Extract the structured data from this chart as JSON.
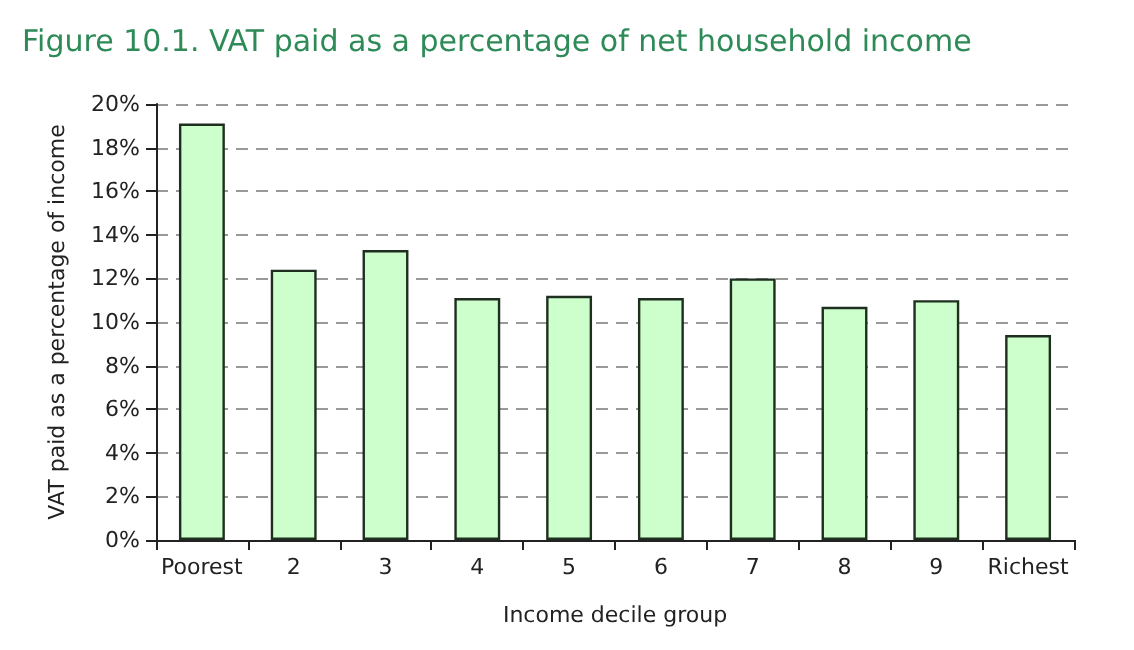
{
  "chart_data": {
    "type": "bar",
    "title": "Figure 10.1. VAT paid as a percentage of net household income",
    "xlabel": "Income decile group",
    "ylabel": "VAT paid as a percentage of income",
    "categories": [
      "Poorest",
      "2",
      "3",
      "4",
      "5",
      "6",
      "7",
      "8",
      "9",
      "Richest"
    ],
    "values": [
      19.1,
      12.4,
      13.3,
      11.1,
      11.2,
      11.1,
      12.0,
      10.7,
      11.0,
      9.4
    ],
    "color": "#ccffcc",
    "ylim": [
      0,
      20
    ],
    "yticks": [
      {
        "value": 0,
        "label": "0%"
      },
      {
        "value": 2,
        "label": "2%"
      },
      {
        "value": 4,
        "label": "4%"
      },
      {
        "value": 6,
        "label": "6%"
      },
      {
        "value": 8,
        "label": "8%"
      },
      {
        "value": 10,
        "label": "10%"
      },
      {
        "value": 12,
        "label": "12%"
      },
      {
        "value": 14,
        "label": "14%"
      },
      {
        "value": 16,
        "label": "16%"
      },
      {
        "value": 18,
        "label": "18%"
      },
      {
        "value": 20,
        "label": "20%"
      }
    ],
    "grid": "y"
  }
}
